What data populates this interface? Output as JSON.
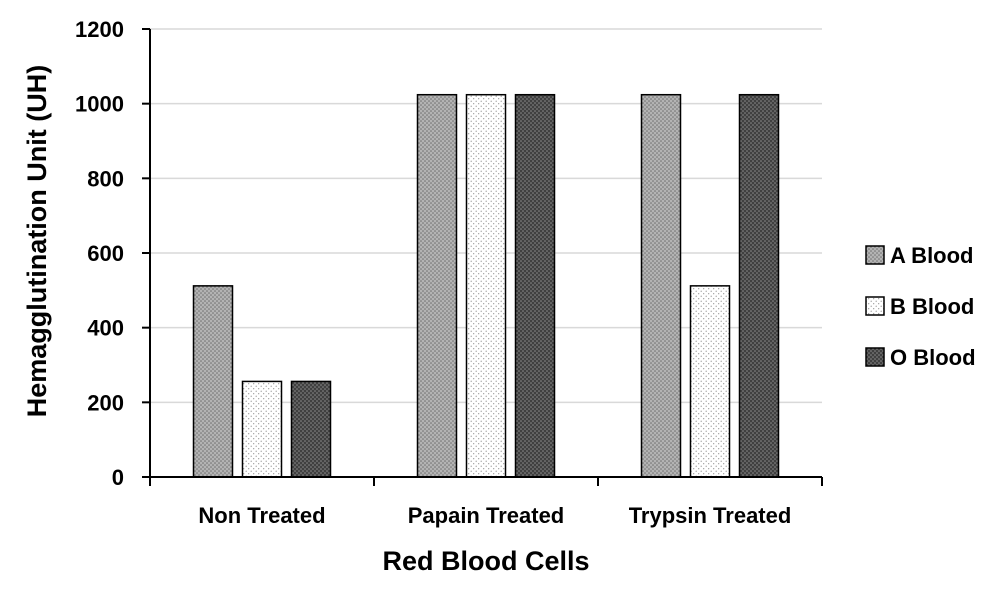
{
  "chart_data": {
    "type": "bar",
    "categories": [
      "Non Treated",
      "Papain Treated",
      "Trypsin Treated"
    ],
    "series": [
      {
        "name": "A Blood",
        "values": [
          512,
          1024,
          1024
        ],
        "color": "#a6a6a6",
        "pattern": "dense-dots"
      },
      {
        "name": "B Blood",
        "values": [
          256,
          1024,
          512
        ],
        "color": "#ffffff",
        "pattern": "sparse-dots"
      },
      {
        "name": "O Blood",
        "values": [
          256,
          1024,
          1024
        ],
        "color": "#4a4a4a",
        "pattern": "dark-dots"
      }
    ],
    "xlabel": "Red Blood Cells",
    "ylabel": "Hemagglutination Unit (UH)",
    "ylim": [
      0,
      1200
    ],
    "yticks": [
      0,
      200,
      400,
      600,
      800,
      1000,
      1200
    ],
    "grid": true,
    "legend_position": "right"
  }
}
